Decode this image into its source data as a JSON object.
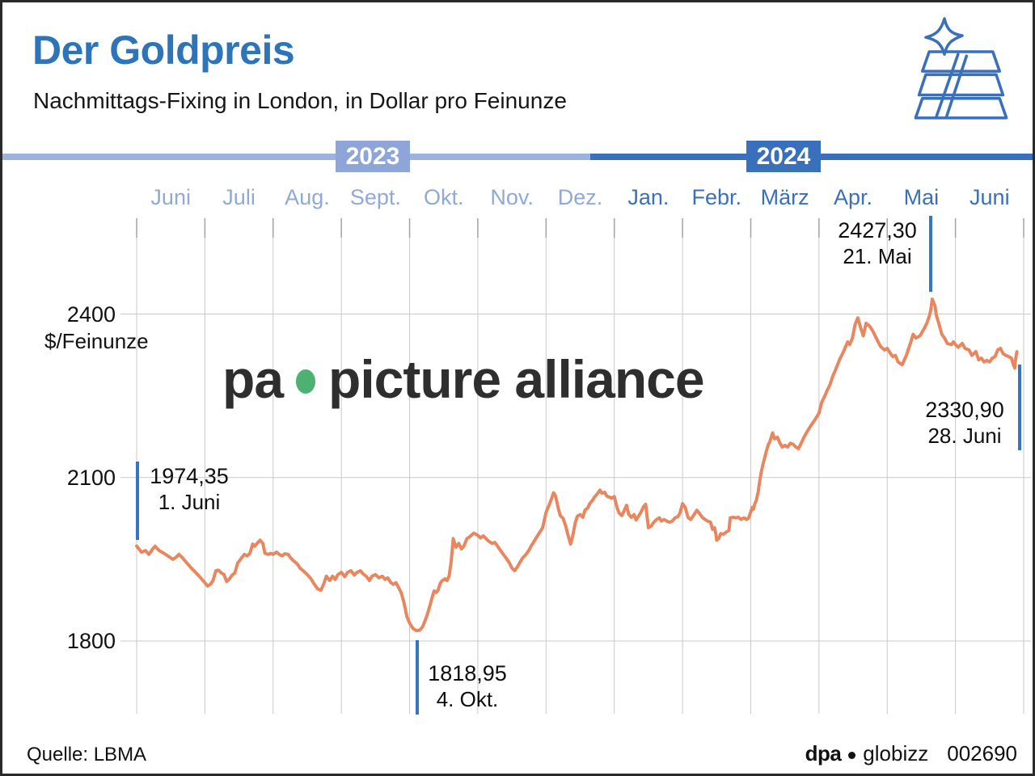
{
  "header": {
    "title": "Der Goldpreis",
    "subtitle": "Nachmittags-Fixing in London, in Dollar pro Feinunze"
  },
  "timeline": {
    "year_left": "2023",
    "year_right": "2024"
  },
  "months": [
    {
      "label": "Juni",
      "year": "2023"
    },
    {
      "label": "Juli",
      "year": "2023"
    },
    {
      "label": "Aug.",
      "year": "2023"
    },
    {
      "label": "Sept.",
      "year": "2023"
    },
    {
      "label": "Okt.",
      "year": "2023"
    },
    {
      "label": "Nov.",
      "year": "2023"
    },
    {
      "label": "Dez.",
      "year": "2023"
    },
    {
      "label": "Jan.",
      "year": "2024"
    },
    {
      "label": "Febr.",
      "year": "2024"
    },
    {
      "label": "März",
      "year": "2024"
    },
    {
      "label": "Apr.",
      "year": "2024"
    },
    {
      "label": "Mai",
      "year": "2024"
    },
    {
      "label": "Juni",
      "year": "2024"
    }
  ],
  "y_axis": {
    "unit": "$/Feinunze",
    "ticks": [
      "2400",
      "2100",
      "1800"
    ]
  },
  "annotations": {
    "start": {
      "value": "1974,35",
      "date": "1. Juni"
    },
    "low": {
      "value": "1818,95",
      "date": "4. Okt."
    },
    "high": {
      "value": "2427,30",
      "date": "21. Mai"
    },
    "end": {
      "value": "2330,90",
      "date": "28. Juni"
    }
  },
  "watermark": {
    "pa": "pa",
    "rest": "picture alliance"
  },
  "footer": {
    "source": "Quelle: LBMA",
    "agency": "dpa",
    "brand": "globizz",
    "code": "002690"
  },
  "colors": {
    "title_blue": "#2d74b8",
    "accent_2023": "#8da5d8",
    "accent_2024": "#3a70bb",
    "line": "#e8875f",
    "marker": "#3575c4",
    "grid": "#c9c9c9",
    "watermark_green": "#4db173"
  },
  "chart_data": {
    "type": "line",
    "title": "Der Goldpreis — Nachmittags-Fixing in London, in Dollar pro Feinunze",
    "ylabel": "$/Feinunze",
    "x_unit": "months since 2023-06-01",
    "x_range": [
      0,
      13
    ],
    "x_tick_labels": [
      "Juni",
      "Juli",
      "Aug.",
      "Sept.",
      "Okt.",
      "Nov.",
      "Dez.",
      "Jan.",
      "Febr.",
      "März",
      "Apr.",
      "Mai",
      "Juni"
    ],
    "y_gridlines": [
      1800,
      2100,
      2400
    ],
    "y_range": [
      1666.5,
      2575.8
    ],
    "grid": true,
    "legend": "none",
    "key_points": [
      {
        "date": "1. Juni 2023",
        "value": 1974.35
      },
      {
        "date": "4. Okt. 2023",
        "value": 1818.95
      },
      {
        "date": "21. Mai 2024",
        "value": 2427.3
      },
      {
        "date": "28. Juni 2024",
        "value": 2330.9
      }
    ],
    "points": [
      [
        0,
        1974.35
      ],
      [
        0.07,
        1963
      ],
      [
        0.13,
        1966
      ],
      [
        0.18,
        1959
      ],
      [
        0.23,
        1968
      ],
      [
        0.27,
        1974
      ],
      [
        0.33,
        1966
      ],
      [
        0.4,
        1961
      ],
      [
        0.47,
        1955
      ],
      [
        0.53,
        1950
      ],
      [
        0.57,
        1953
      ],
      [
        0.62,
        1959
      ],
      [
        0.67,
        1953
      ],
      [
        0.73,
        1944
      ],
      [
        0.8,
        1934
      ],
      [
        0.87,
        1925
      ],
      [
        0.93,
        1917
      ],
      [
        1.0,
        1907
      ],
      [
        1.04,
        1901
      ],
      [
        1.08,
        1904
      ],
      [
        1.12,
        1911
      ],
      [
        1.16,
        1929
      ],
      [
        1.2,
        1930
      ],
      [
        1.24,
        1925
      ],
      [
        1.28,
        1922
      ],
      [
        1.32,
        1909
      ],
      [
        1.36,
        1914
      ],
      [
        1.4,
        1921
      ],
      [
        1.44,
        1925
      ],
      [
        1.48,
        1943
      ],
      [
        1.54,
        1953
      ],
      [
        1.58,
        1959
      ],
      [
        1.62,
        1956
      ],
      [
        1.66,
        1961
      ],
      [
        1.7,
        1978
      ],
      [
        1.73,
        1974
      ],
      [
        1.77,
        1980
      ],
      [
        1.81,
        1985
      ],
      [
        1.85,
        1979
      ],
      [
        1.88,
        1961
      ],
      [
        1.93,
        1959
      ],
      [
        1.97,
        1961
      ],
      [
        2.0,
        1959
      ],
      [
        2.05,
        1963
      ],
      [
        2.09,
        1959
      ],
      [
        2.13,
        1956
      ],
      [
        2.17,
        1960
      ],
      [
        2.22,
        1959
      ],
      [
        2.26,
        1952
      ],
      [
        2.3,
        1947
      ],
      [
        2.35,
        1942
      ],
      [
        2.4,
        1933
      ],
      [
        2.45,
        1928
      ],
      [
        2.5,
        1922
      ],
      [
        2.55,
        1915
      ],
      [
        2.6,
        1905
      ],
      [
        2.65,
        1896
      ],
      [
        2.7,
        1893
      ],
      [
        2.74,
        1904
      ],
      [
        2.78,
        1919
      ],
      [
        2.83,
        1911
      ],
      [
        2.87,
        1919
      ],
      [
        2.91,
        1913
      ],
      [
        2.95,
        1922
      ],
      [
        3.0,
        1926
      ],
      [
        3.05,
        1918
      ],
      [
        3.09,
        1926
      ],
      [
        3.14,
        1929
      ],
      [
        3.19,
        1921
      ],
      [
        3.23,
        1926
      ],
      [
        3.28,
        1929
      ],
      [
        3.32,
        1923
      ],
      [
        3.37,
        1918
      ],
      [
        3.41,
        1911
      ],
      [
        3.45,
        1919
      ],
      [
        3.5,
        1922
      ],
      [
        3.55,
        1916
      ],
      [
        3.6,
        1919
      ],
      [
        3.64,
        1913
      ],
      [
        3.68,
        1916
      ],
      [
        3.72,
        1908
      ],
      [
        3.76,
        1904
      ],
      [
        3.8,
        1907
      ],
      [
        3.84,
        1898
      ],
      [
        3.88,
        1888
      ],
      [
        3.92,
        1869
      ],
      [
        3.96,
        1845
      ],
      [
        4.0,
        1833
      ],
      [
        4.05,
        1823
      ],
      [
        4.1,
        1818.95
      ],
      [
        4.15,
        1820
      ],
      [
        4.19,
        1826
      ],
      [
        4.23,
        1838
      ],
      [
        4.26,
        1849
      ],
      [
        4.3,
        1866
      ],
      [
        4.33,
        1880
      ],
      [
        4.36,
        1892
      ],
      [
        4.39,
        1889
      ],
      [
        4.42,
        1894
      ],
      [
        4.45,
        1906
      ],
      [
        4.48,
        1911
      ],
      [
        4.52,
        1914
      ],
      [
        4.55,
        1911
      ],
      [
        4.58,
        1920
      ],
      [
        4.61,
        1946
      ],
      [
        4.64,
        1988
      ],
      [
        4.68,
        1972
      ],
      [
        4.72,
        1979
      ],
      [
        4.76,
        1969
      ],
      [
        4.8,
        1975
      ],
      [
        4.84,
        1988
      ],
      [
        4.88,
        1991
      ],
      [
        4.94,
        1998
      ],
      [
        5.0,
        1994
      ],
      [
        5.04,
        1989
      ],
      [
        5.08,
        1993
      ],
      [
        5.12,
        1988
      ],
      [
        5.16,
        1983
      ],
      [
        5.21,
        1979
      ],
      [
        5.25,
        1981
      ],
      [
        5.3,
        1972
      ],
      [
        5.34,
        1965
      ],
      [
        5.38,
        1958
      ],
      [
        5.42,
        1951
      ],
      [
        5.46,
        1944
      ],
      [
        5.5,
        1934
      ],
      [
        5.54,
        1929
      ],
      [
        5.58,
        1936
      ],
      [
        5.62,
        1945
      ],
      [
        5.66,
        1953
      ],
      [
        5.7,
        1958
      ],
      [
        5.74,
        1965
      ],
      [
        5.79,
        1976
      ],
      [
        5.83,
        1984
      ],
      [
        5.87,
        1992
      ],
      [
        5.91,
        2000
      ],
      [
        5.95,
        2008
      ],
      [
        6.0,
        2036
      ],
      [
        6.04,
        2048
      ],
      [
        6.08,
        2061
      ],
      [
        6.11,
        2072
      ],
      [
        6.14,
        2066
      ],
      [
        6.18,
        2043
      ],
      [
        6.21,
        2030
      ],
      [
        6.25,
        2025
      ],
      [
        6.29,
        2010
      ],
      [
        6.32,
        1995
      ],
      [
        6.36,
        1978
      ],
      [
        6.39,
        1992
      ],
      [
        6.43,
        2018
      ],
      [
        6.46,
        2029
      ],
      [
        6.5,
        2032
      ],
      [
        6.54,
        2027
      ],
      [
        6.57,
        2040
      ],
      [
        6.61,
        2044
      ],
      [
        6.64,
        2052
      ],
      [
        6.68,
        2058
      ],
      [
        6.71,
        2064
      ],
      [
        6.75,
        2070
      ],
      [
        6.79,
        2077
      ],
      [
        6.82,
        2071
      ],
      [
        6.86,
        2073
      ],
      [
        6.89,
        2066
      ],
      [
        6.93,
        2064
      ],
      [
        6.96,
        2062
      ],
      [
        7.0,
        2065
      ],
      [
        7.04,
        2045
      ],
      [
        7.07,
        2035
      ],
      [
        7.11,
        2030
      ],
      [
        7.14,
        2038
      ],
      [
        7.18,
        2049
      ],
      [
        7.21,
        2033
      ],
      [
        7.25,
        2027
      ],
      [
        7.29,
        2032
      ],
      [
        7.32,
        2022
      ],
      [
        7.36,
        2030
      ],
      [
        7.39,
        2036
      ],
      [
        7.43,
        2047
      ],
      [
        7.46,
        2051
      ],
      [
        7.5,
        2008
      ],
      [
        7.54,
        2011
      ],
      [
        7.58,
        2018
      ],
      [
        7.62,
        2023
      ],
      [
        7.66,
        2026
      ],
      [
        7.69,
        2020
      ],
      [
        7.73,
        2023
      ],
      [
        7.77,
        2020
      ],
      [
        7.81,
        2018
      ],
      [
        7.85,
        2020
      ],
      [
        7.89,
        2026
      ],
      [
        7.93,
        2028
      ],
      [
        7.96,
        2034
      ],
      [
        8.0,
        2052
      ],
      [
        8.04,
        2045
      ],
      [
        8.08,
        2027
      ],
      [
        8.12,
        2023
      ],
      [
        8.16,
        2030
      ],
      [
        8.21,
        2040
      ],
      [
        8.25,
        2034
      ],
      [
        8.29,
        2027
      ],
      [
        8.33,
        2023
      ],
      [
        8.37,
        2020
      ],
      [
        8.41,
        2018
      ],
      [
        8.44,
        2005
      ],
      [
        8.47,
        2008
      ],
      [
        8.49,
        1996
      ],
      [
        8.5,
        1985
      ],
      [
        8.53,
        1988
      ],
      [
        8.56,
        1997
      ],
      [
        8.6,
        1996
      ],
      [
        8.64,
        2000
      ],
      [
        8.68,
        2003
      ],
      [
        8.7,
        2026
      ],
      [
        8.74,
        2027
      ],
      [
        8.78,
        2026
      ],
      [
        8.82,
        2027
      ],
      [
        8.86,
        2023
      ],
      [
        8.9,
        2026
      ],
      [
        8.94,
        2023
      ],
      [
        8.97,
        2026
      ],
      [
        9.0,
        2037
      ],
      [
        9.02,
        2045
      ],
      [
        9.04,
        2042
      ],
      [
        9.06,
        2052
      ],
      [
        9.08,
        2057
      ],
      [
        9.11,
        2074
      ],
      [
        9.13,
        2092
      ],
      [
        9.15,
        2107
      ],
      [
        9.17,
        2119
      ],
      [
        9.2,
        2134
      ],
      [
        9.22,
        2144
      ],
      [
        9.24,
        2153
      ],
      [
        9.26,
        2161
      ],
      [
        9.28,
        2166
      ],
      [
        9.3,
        2174
      ],
      [
        9.32,
        2182
      ],
      [
        9.35,
        2171
      ],
      [
        9.39,
        2174
      ],
      [
        9.43,
        2163
      ],
      [
        9.46,
        2156
      ],
      [
        9.5,
        2159
      ],
      [
        9.54,
        2156
      ],
      [
        9.58,
        2163
      ],
      [
        9.62,
        2161
      ],
      [
        9.66,
        2156
      ],
      [
        9.7,
        2153
      ],
      [
        9.74,
        2163
      ],
      [
        9.78,
        2174
      ],
      [
        9.82,
        2183
      ],
      [
        9.88,
        2195
      ],
      [
        9.94,
        2206
      ],
      [
        10.0,
        2218
      ],
      [
        10.04,
        2238
      ],
      [
        10.08,
        2248
      ],
      [
        10.12,
        2260
      ],
      [
        10.16,
        2270
      ],
      [
        10.2,
        2285
      ],
      [
        10.24,
        2297
      ],
      [
        10.3,
        2316
      ],
      [
        10.36,
        2331
      ],
      [
        10.42,
        2349
      ],
      [
        10.45,
        2344
      ],
      [
        10.49,
        2356
      ],
      [
        10.53,
        2381
      ],
      [
        10.57,
        2393
      ],
      [
        10.61,
        2375
      ],
      [
        10.65,
        2360
      ],
      [
        10.69,
        2383
      ],
      [
        10.74,
        2378
      ],
      [
        10.78,
        2371
      ],
      [
        10.84,
        2356
      ],
      [
        10.9,
        2341
      ],
      [
        10.96,
        2334
      ],
      [
        11.0,
        2337
      ],
      [
        11.04,
        2329
      ],
      [
        11.08,
        2322
      ],
      [
        11.12,
        2324
      ],
      [
        11.16,
        2312
      ],
      [
        11.22,
        2307
      ],
      [
        11.28,
        2324
      ],
      [
        11.34,
        2346
      ],
      [
        11.38,
        2363
      ],
      [
        11.42,
        2356
      ],
      [
        11.48,
        2360
      ],
      [
        11.54,
        2373
      ],
      [
        11.58,
        2383
      ],
      [
        11.62,
        2397
      ],
      [
        11.64,
        2408
      ],
      [
        11.66,
        2427.3
      ],
      [
        11.7,
        2415
      ],
      [
        11.72,
        2398
      ],
      [
        11.76,
        2381
      ],
      [
        11.8,
        2363
      ],
      [
        11.84,
        2356
      ],
      [
        11.88,
        2346
      ],
      [
        11.94,
        2344
      ],
      [
        11.97,
        2349
      ],
      [
        12.0,
        2344
      ],
      [
        12.04,
        2339
      ],
      [
        12.1,
        2346
      ],
      [
        12.14,
        2337
      ],
      [
        12.2,
        2334
      ],
      [
        12.24,
        2324
      ],
      [
        12.3,
        2331
      ],
      [
        12.34,
        2316
      ],
      [
        12.38,
        2319
      ],
      [
        12.42,
        2312
      ],
      [
        12.46,
        2315
      ],
      [
        12.5,
        2312
      ],
      [
        12.54,
        2319
      ],
      [
        12.58,
        2322
      ],
      [
        12.62,
        2334
      ],
      [
        12.66,
        2337
      ],
      [
        12.7,
        2327
      ],
      [
        12.74,
        2324
      ],
      [
        12.78,
        2322
      ],
      [
        12.82,
        2319
      ],
      [
        12.85,
        2307
      ],
      [
        12.87,
        2301
      ],
      [
        12.88,
        2316
      ],
      [
        12.9,
        2330.9
      ]
    ]
  }
}
